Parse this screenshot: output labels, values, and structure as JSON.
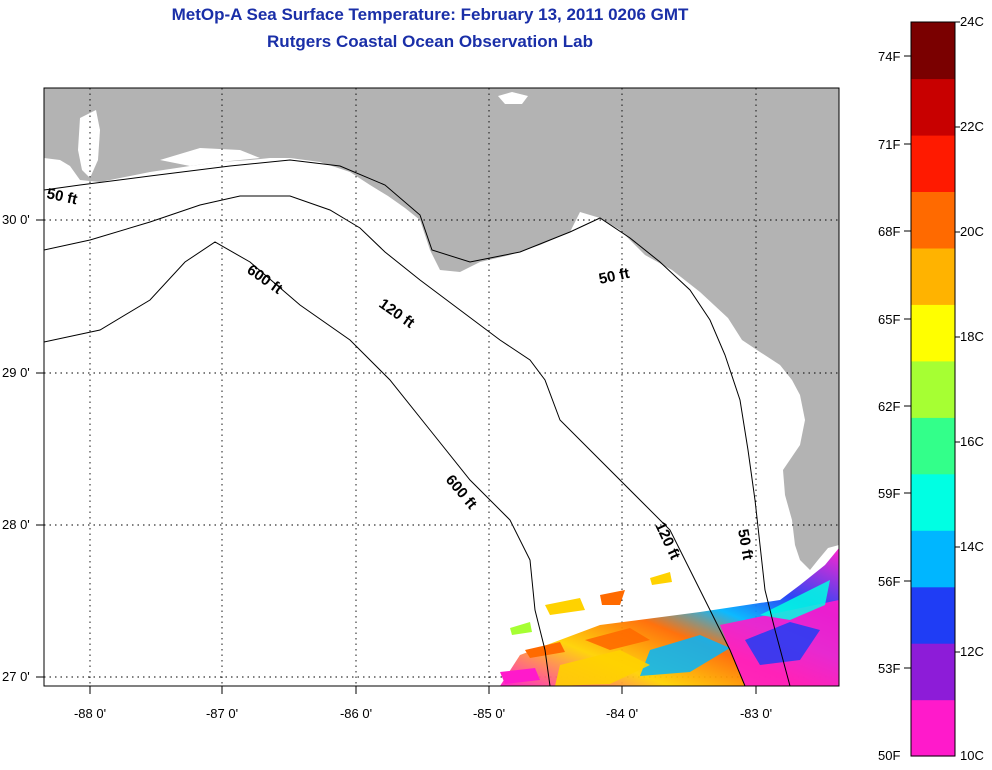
{
  "header": {
    "title": "MetOp-A Sea Surface Temperature:  February 13, 2011 0206 GMT",
    "subtitle": "Rutgers Coastal Ocean Observation Lab"
  },
  "map": {
    "lon_labels": [
      "-88 0'",
      "-87 0'",
      "-86 0'",
      "-85 0'",
      "-84 0'",
      "-83 0'"
    ],
    "lat_labels": [
      "30 0'",
      "29 0'",
      "28 0'",
      "27 0'"
    ],
    "land_color": "#b3b3b3",
    "water_color": "#ffffff",
    "contour_labels": [
      {
        "text": "50 ft",
        "id": "w50"
      },
      {
        "text": "600 ft",
        "id": "n600"
      },
      {
        "text": "120 ft",
        "id": "n120"
      },
      {
        "text": "50 ft",
        "id": "e50"
      },
      {
        "text": "600 ft",
        "id": "s600"
      },
      {
        "text": "120 ft",
        "id": "s120"
      },
      {
        "text": "50 ft",
        "id": "s50"
      }
    ],
    "region": "Gulf of Mexico – Florida Big Bend shelf"
  },
  "colorbar": {
    "fahrenheit_labels": [
      "74F",
      "71F",
      "68F",
      "65F",
      "62F",
      "59F",
      "56F",
      "53F",
      "50F"
    ],
    "celsius_labels": [
      "24C",
      "22C",
      "20C",
      "18C",
      "16C",
      "14C",
      "12C",
      "10C"
    ],
    "colors": [
      "#ff1acb",
      "#8d1cd8",
      "#1f3df5",
      "#00b6ff",
      "#00ffe3",
      "#33ff8a",
      "#a6ff33",
      "#ffff00",
      "#ffb300",
      "#ff6a00",
      "#ff1a00",
      "#c80000",
      "#7a0000"
    ]
  }
}
